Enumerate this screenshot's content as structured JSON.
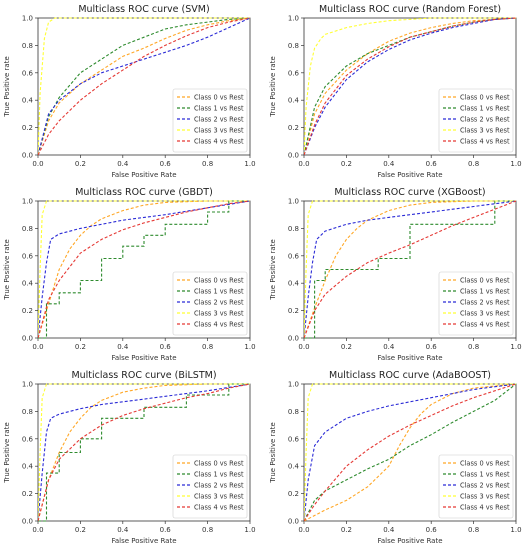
{
  "chart_data": [
    {
      "type": "line",
      "title": "Multiclass ROC curve (SVM)",
      "xlabel": "False Positive Rate",
      "ylabel": "True Positive rate",
      "xlim": [
        0,
        1
      ],
      "ylim": [
        0,
        1
      ],
      "xticks": [
        "0.0",
        "0.2",
        "0.4",
        "0.6",
        "0.8",
        "1.0"
      ],
      "yticks": [
        "0.0",
        "0.2",
        "0.4",
        "0.6",
        "0.8",
        "1.0"
      ],
      "grid": false,
      "legend_position": "lower-right",
      "series": [
        {
          "name": "Class 0 vs Rest",
          "color": "#ffa726",
          "x": [
            0,
            0.05,
            0.1,
            0.2,
            0.3,
            0.4,
            0.5,
            0.6,
            0.7,
            0.8,
            0.9,
            1.0
          ],
          "y": [
            0,
            0.25,
            0.38,
            0.52,
            0.62,
            0.72,
            0.78,
            0.85,
            0.91,
            0.95,
            0.98,
            1.0
          ]
        },
        {
          "name": "Class 1 vs Rest",
          "color": "#2e8b2e",
          "x": [
            0,
            0.05,
            0.1,
            0.2,
            0.3,
            0.4,
            0.5,
            0.6,
            0.7,
            0.8,
            0.9,
            1.0
          ],
          "y": [
            0,
            0.28,
            0.42,
            0.6,
            0.7,
            0.8,
            0.86,
            0.92,
            0.95,
            0.97,
            0.99,
            1.0
          ]
        },
        {
          "name": "Class 2 vs Rest",
          "color": "#2b2bd6",
          "x": [
            0,
            0.05,
            0.1,
            0.2,
            0.3,
            0.4,
            0.5,
            0.6,
            0.7,
            0.8,
            0.9,
            1.0
          ],
          "y": [
            0,
            0.3,
            0.4,
            0.52,
            0.6,
            0.65,
            0.7,
            0.75,
            0.8,
            0.86,
            0.93,
            1.0
          ]
        },
        {
          "name": "Class 3 vs Rest",
          "color": "#ffff33",
          "x": [
            0,
            0.01,
            0.03,
            0.05,
            0.08,
            0.1,
            1.0
          ],
          "y": [
            0,
            0.45,
            0.85,
            0.97,
            1.0,
            1.0,
            1.0
          ]
        },
        {
          "name": "Class 4 vs Rest",
          "color": "#e53935",
          "x": [
            0,
            0.05,
            0.1,
            0.2,
            0.3,
            0.4,
            0.5,
            0.6,
            0.7,
            0.8,
            0.9,
            1.0
          ],
          "y": [
            0,
            0.15,
            0.25,
            0.4,
            0.52,
            0.62,
            0.72,
            0.8,
            0.87,
            0.93,
            0.97,
            1.0
          ]
        }
      ]
    },
    {
      "type": "line",
      "title": "Multiclass ROC curve (Random Forest)",
      "xlabel": "False Positive Rate",
      "ylabel": "True Positive rate",
      "xlim": [
        0,
        1
      ],
      "ylim": [
        0,
        1
      ],
      "xticks": [
        "0.0",
        "0.2",
        "0.4",
        "0.6",
        "0.8",
        "1.0"
      ],
      "yticks": [
        "0.0",
        "0.2",
        "0.4",
        "0.6",
        "0.8",
        "1.0"
      ],
      "grid": false,
      "legend_position": "lower-right",
      "series": [
        {
          "name": "Class 0 vs Rest",
          "color": "#ffa726",
          "x": [
            0,
            0.05,
            0.1,
            0.2,
            0.3,
            0.4,
            0.5,
            0.6,
            0.7,
            0.8,
            0.9,
            1.0
          ],
          "y": [
            0,
            0.3,
            0.45,
            0.62,
            0.74,
            0.83,
            0.89,
            0.93,
            0.96,
            0.98,
            0.99,
            1.0
          ]
        },
        {
          "name": "Class 1 vs Rest",
          "color": "#2e8b2e",
          "x": [
            0,
            0.05,
            0.1,
            0.2,
            0.3,
            0.4,
            0.5,
            0.6,
            0.7,
            0.8,
            0.9,
            1.0
          ],
          "y": [
            0,
            0.35,
            0.5,
            0.65,
            0.74,
            0.8,
            0.86,
            0.9,
            0.94,
            0.97,
            0.99,
            1.0
          ]
        },
        {
          "name": "Class 2 vs Rest",
          "color": "#2b2bd6",
          "x": [
            0,
            0.05,
            0.1,
            0.2,
            0.3,
            0.4,
            0.5,
            0.6,
            0.7,
            0.8,
            0.9,
            1.0
          ],
          "y": [
            0,
            0.2,
            0.35,
            0.55,
            0.68,
            0.77,
            0.84,
            0.89,
            0.93,
            0.96,
            0.99,
            1.0
          ]
        },
        {
          "name": "Class 3 vs Rest",
          "color": "#ffff33",
          "x": [
            0,
            0.01,
            0.03,
            0.05,
            0.08,
            0.1,
            0.2,
            0.3,
            0.4,
            0.5,
            0.6,
            0.8,
            1.0
          ],
          "y": [
            0,
            0.35,
            0.65,
            0.78,
            0.85,
            0.88,
            0.93,
            0.96,
            0.98,
            0.99,
            1.0,
            1.0,
            1.0
          ]
        },
        {
          "name": "Class 4 vs Rest",
          "color": "#e53935",
          "x": [
            0,
            0.05,
            0.1,
            0.2,
            0.3,
            0.4,
            0.5,
            0.6,
            0.7,
            0.8,
            0.9,
            1.0
          ],
          "y": [
            0,
            0.22,
            0.38,
            0.58,
            0.7,
            0.79,
            0.86,
            0.9,
            0.94,
            0.97,
            0.99,
            1.0
          ]
        }
      ]
    },
    {
      "type": "line",
      "title": "Multiclass ROC curve (GBDT)",
      "xlabel": "False Positive Rate",
      "ylabel": "True Positive rate",
      "xlim": [
        0,
        1
      ],
      "ylim": [
        0,
        1
      ],
      "xticks": [
        "0.0",
        "0.2",
        "0.4",
        "0.6",
        "0.8",
        "1.0"
      ],
      "yticks": [
        "0.0",
        "0.2",
        "0.4",
        "0.6",
        "0.8",
        "1.0"
      ],
      "grid": false,
      "legend_position": "lower-right",
      "series": [
        {
          "name": "Class 0 vs Rest",
          "color": "#ffa726",
          "x": [
            0,
            0.05,
            0.1,
            0.15,
            0.2,
            0.25,
            0.3,
            0.4,
            0.5,
            0.6,
            0.8,
            1.0
          ],
          "y": [
            0,
            0.25,
            0.5,
            0.65,
            0.75,
            0.82,
            0.87,
            0.93,
            0.97,
            0.99,
            1.0,
            1.0
          ]
        },
        {
          "name": "Class 1 vs Rest",
          "color": "#2e8b2e",
          "x": [
            0,
            0.04,
            0.04,
            0.1,
            0.1,
            0.2,
            0.2,
            0.3,
            0.3,
            0.4,
            0.4,
            0.5,
            0.5,
            0.6,
            0.6,
            0.8,
            0.8,
            0.9,
            0.9,
            1.0
          ],
          "y": [
            0,
            0,
            0.25,
            0.25,
            0.33,
            0.33,
            0.42,
            0.42,
            0.58,
            0.58,
            0.67,
            0.67,
            0.75,
            0.75,
            0.83,
            0.83,
            0.92,
            0.92,
            1.0,
            1.0
          ]
        },
        {
          "name": "Class 2 vs Rest",
          "color": "#2b2bd6",
          "x": [
            0,
            0.02,
            0.04,
            0.06,
            0.1,
            0.2,
            0.3,
            0.4,
            0.5,
            0.6,
            0.8,
            1.0
          ],
          "y": [
            0,
            0.3,
            0.55,
            0.72,
            0.76,
            0.8,
            0.83,
            0.86,
            0.88,
            0.9,
            0.95,
            1.0
          ]
        },
        {
          "name": "Class 3 vs Rest",
          "color": "#ffff33",
          "x": [
            0,
            0.01,
            0.02,
            0.04,
            1.0
          ],
          "y": [
            0,
            0.5,
            0.9,
            1.0,
            1.0
          ]
        },
        {
          "name": "Class 4 vs Rest",
          "color": "#e53935",
          "x": [
            0,
            0.05,
            0.1,
            0.2,
            0.3,
            0.4,
            0.5,
            0.6,
            0.7,
            0.8,
            0.9,
            1.0
          ],
          "y": [
            0,
            0.28,
            0.42,
            0.62,
            0.72,
            0.79,
            0.84,
            0.88,
            0.92,
            0.95,
            0.98,
            1.0
          ]
        }
      ]
    },
    {
      "type": "line",
      "title": "Multiclass ROC curve (XGBoost)",
      "xlabel": "False Positive Rate",
      "ylabel": "True Positive rate",
      "xlim": [
        0,
        1
      ],
      "ylim": [
        0,
        1
      ],
      "xticks": [
        "0.0",
        "0.2",
        "0.4",
        "0.6",
        "0.8",
        "1.0"
      ],
      "yticks": [
        "0.0",
        "0.2",
        "0.4",
        "0.6",
        "0.8",
        "1.0"
      ],
      "grid": false,
      "legend_position": "lower-right",
      "series": [
        {
          "name": "Class 0 vs Rest",
          "color": "#ffa726",
          "x": [
            0,
            0.05,
            0.1,
            0.15,
            0.2,
            0.25,
            0.3,
            0.4,
            0.5,
            0.6,
            0.8,
            1.0
          ],
          "y": [
            0,
            0.22,
            0.42,
            0.6,
            0.72,
            0.8,
            0.86,
            0.93,
            0.97,
            0.99,
            1.0,
            1.0
          ]
        },
        {
          "name": "Class 1 vs Rest",
          "color": "#2e8b2e",
          "x": [
            0,
            0.05,
            0.05,
            0.1,
            0.1,
            0.35,
            0.35,
            0.5,
            0.5,
            0.9,
            0.9,
            1.0
          ],
          "y": [
            0,
            0,
            0.42,
            0.42,
            0.5,
            0.5,
            0.58,
            0.58,
            0.83,
            0.83,
            1.0,
            1.0
          ]
        },
        {
          "name": "Class 2 vs Rest",
          "color": "#2b2bd6",
          "x": [
            0,
            0.02,
            0.04,
            0.06,
            0.1,
            0.2,
            0.3,
            0.4,
            0.5,
            0.6,
            0.8,
            1.0
          ],
          "y": [
            0,
            0.3,
            0.55,
            0.72,
            0.78,
            0.83,
            0.86,
            0.88,
            0.9,
            0.92,
            0.96,
            1.0
          ]
        },
        {
          "name": "Class 3 vs Rest",
          "color": "#ffff33",
          "x": [
            0,
            0.01,
            0.02,
            0.04,
            1.0
          ],
          "y": [
            0,
            0.5,
            0.9,
            1.0,
            1.0
          ]
        },
        {
          "name": "Class 4 vs Rest",
          "color": "#e53935",
          "x": [
            0,
            0.05,
            0.1,
            0.2,
            0.3,
            0.4,
            0.5,
            0.6,
            0.7,
            0.8,
            0.9,
            1.0
          ],
          "y": [
            0,
            0.2,
            0.32,
            0.45,
            0.55,
            0.62,
            0.68,
            0.75,
            0.82,
            0.88,
            0.94,
            1.0
          ]
        }
      ]
    },
    {
      "type": "line",
      "title": "Multiclass ROC curve (BiLSTM)",
      "xlabel": "False Positive Rate",
      "ylabel": "True Positive rate",
      "xlim": [
        0,
        1
      ],
      "ylim": [
        0,
        1
      ],
      "xticks": [
        "0.0",
        "0.2",
        "0.4",
        "0.6",
        "0.8",
        "1.0"
      ],
      "yticks": [
        "0.0",
        "0.2",
        "0.4",
        "0.6",
        "0.8",
        "1.0"
      ],
      "grid": false,
      "legend_position": "lower-right",
      "series": [
        {
          "name": "Class 0 vs Rest",
          "color": "#ffa726",
          "x": [
            0,
            0.05,
            0.1,
            0.15,
            0.2,
            0.25,
            0.3,
            0.4,
            0.5,
            0.6,
            0.8,
            1.0
          ],
          "y": [
            0,
            0.3,
            0.5,
            0.65,
            0.75,
            0.83,
            0.88,
            0.94,
            0.97,
            0.99,
            1.0,
            1.0
          ]
        },
        {
          "name": "Class 1 vs Rest",
          "color": "#2e8b2e",
          "x": [
            0,
            0.04,
            0.04,
            0.1,
            0.1,
            0.2,
            0.2,
            0.3,
            0.3,
            0.5,
            0.5,
            0.7,
            0.7,
            0.9,
            0.9,
            1.0
          ],
          "y": [
            0,
            0,
            0.35,
            0.35,
            0.5,
            0.5,
            0.6,
            0.6,
            0.75,
            0.75,
            0.83,
            0.83,
            0.92,
            0.92,
            1.0,
            1.0
          ]
        },
        {
          "name": "Class 2 vs Rest",
          "color": "#2b2bd6",
          "x": [
            0,
            0.02,
            0.04,
            0.06,
            0.1,
            0.2,
            0.3,
            0.4,
            0.5,
            0.6,
            0.8,
            1.0
          ],
          "y": [
            0,
            0.35,
            0.65,
            0.75,
            0.78,
            0.82,
            0.85,
            0.87,
            0.89,
            0.91,
            0.95,
            1.0
          ]
        },
        {
          "name": "Class 3 vs Rest",
          "color": "#ffff33",
          "x": [
            0,
            0.01,
            0.02,
            0.04,
            1.0
          ],
          "y": [
            0,
            0.5,
            0.9,
            1.0,
            1.0
          ]
        },
        {
          "name": "Class 4 vs Rest",
          "color": "#e53935",
          "x": [
            0,
            0.05,
            0.1,
            0.2,
            0.3,
            0.4,
            0.5,
            0.6,
            0.7,
            0.8,
            0.9,
            1.0
          ],
          "y": [
            0,
            0.3,
            0.45,
            0.6,
            0.7,
            0.77,
            0.82,
            0.86,
            0.9,
            0.93,
            0.97,
            1.0
          ]
        }
      ]
    },
    {
      "type": "line",
      "title": "Multiclass ROC curve (AdaBOOST)",
      "xlabel": "False Positive Rate",
      "ylabel": "True Positive rate",
      "xlim": [
        0,
        1
      ],
      "ylim": [
        0,
        1
      ],
      "xticks": [
        "0.0",
        "0.2",
        "0.4",
        "0.6",
        "0.8",
        "1.0"
      ],
      "yticks": [
        "0.0",
        "0.2",
        "0.4",
        "0.6",
        "0.8",
        "1.0"
      ],
      "grid": false,
      "legend_position": "lower-right",
      "series": [
        {
          "name": "Class 0 vs Rest",
          "color": "#ffa726",
          "x": [
            0,
            0.1,
            0.2,
            0.3,
            0.4,
            0.45,
            0.5,
            0.55,
            0.6,
            0.7,
            0.8,
            1.0
          ],
          "y": [
            0,
            0.08,
            0.15,
            0.25,
            0.4,
            0.55,
            0.68,
            0.78,
            0.85,
            0.93,
            0.97,
            1.0
          ]
        },
        {
          "name": "Class 1 vs Rest",
          "color": "#2e8b2e",
          "x": [
            0,
            0.05,
            0.1,
            0.2,
            0.3,
            0.4,
            0.5,
            0.6,
            0.7,
            0.8,
            0.9,
            1.0
          ],
          "y": [
            0,
            0.15,
            0.22,
            0.3,
            0.38,
            0.45,
            0.55,
            0.63,
            0.72,
            0.8,
            0.88,
            1.0
          ]
        },
        {
          "name": "Class 2 vs Rest",
          "color": "#2b2bd6",
          "x": [
            0,
            0.02,
            0.05,
            0.1,
            0.2,
            0.3,
            0.4,
            0.5,
            0.6,
            0.7,
            0.8,
            1.0
          ],
          "y": [
            0,
            0.3,
            0.55,
            0.65,
            0.75,
            0.8,
            0.84,
            0.87,
            0.9,
            0.93,
            0.96,
            1.0
          ]
        },
        {
          "name": "Class 3 vs Rest",
          "color": "#ffff33",
          "x": [
            0,
            0.01,
            0.02,
            0.04,
            1.0
          ],
          "y": [
            0,
            0.5,
            0.9,
            1.0,
            1.0
          ]
        },
        {
          "name": "Class 4 vs Rest",
          "color": "#e53935",
          "x": [
            0,
            0.05,
            0.1,
            0.2,
            0.3,
            0.4,
            0.5,
            0.6,
            0.7,
            0.8,
            0.9,
            1.0
          ],
          "y": [
            0,
            0.12,
            0.22,
            0.4,
            0.52,
            0.62,
            0.7,
            0.77,
            0.84,
            0.9,
            0.95,
            1.0
          ]
        }
      ]
    }
  ]
}
